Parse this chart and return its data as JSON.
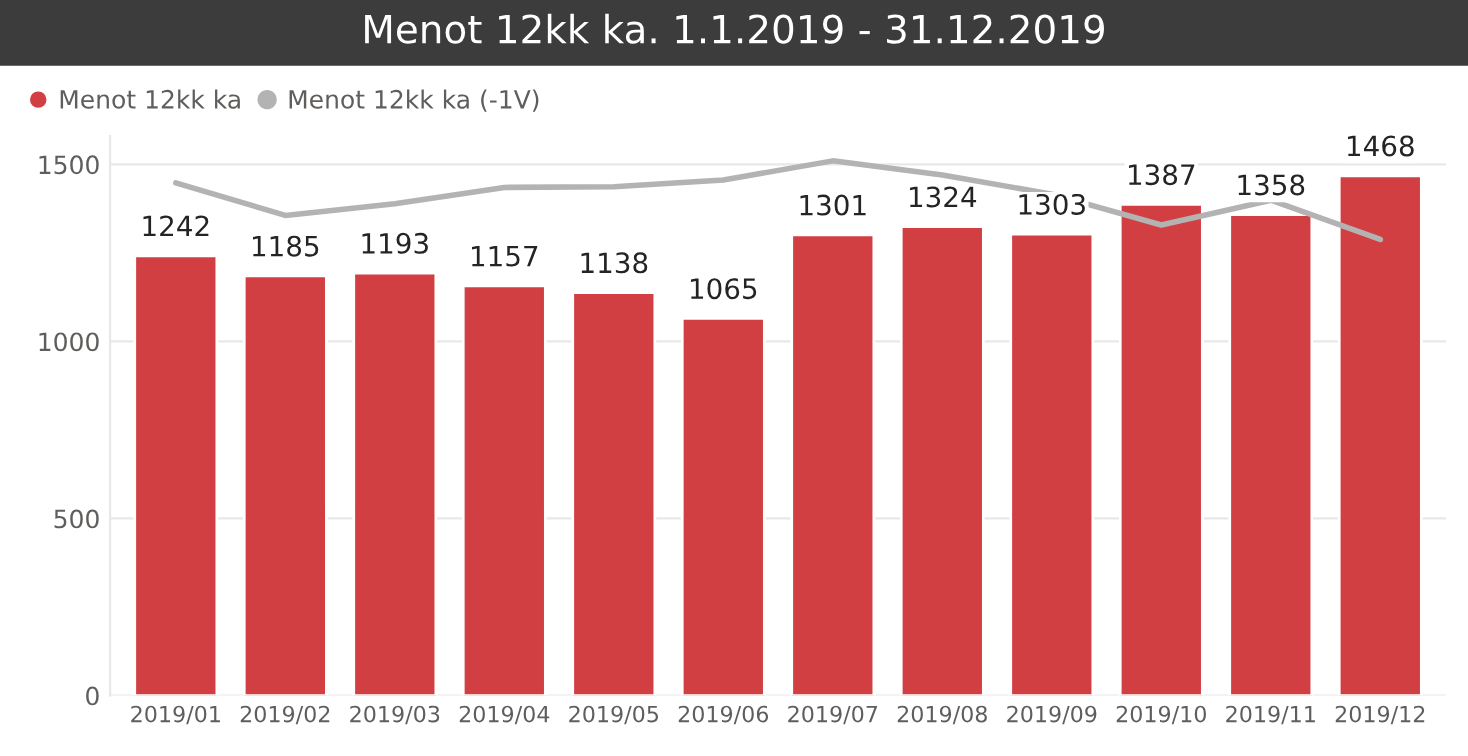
{
  "chart_data": {
    "type": "bar",
    "title": "Menot 12kk ka. 1.1.2019 - 31.12.2019",
    "categories": [
      "2019/01",
      "2019/02",
      "2019/03",
      "2019/04",
      "2019/05",
      "2019/06",
      "2019/07",
      "2019/08",
      "2019/09",
      "2019/10",
      "2019/11",
      "2019/12"
    ],
    "series": [
      {
        "name": "Menot 12kk ka",
        "color": "#d13f42",
        "values": [
          1242,
          1185,
          1193,
          1157,
          1138,
          1065,
          1301,
          1324,
          1303,
          1387,
          1358,
          1468
        ],
        "value_labels": [
          "1242",
          "1185",
          "1193",
          "1157",
          "1138",
          "1065",
          "1301",
          "1324",
          "1303",
          "1387",
          "1358",
          "1468"
        ]
      },
      {
        "name": "Menot 12kk ka (-1V)",
        "type": "line",
        "color": "#b3b3b3",
        "values": [
          1448,
          1356,
          1389,
          1435,
          1437,
          1456,
          1510,
          1470,
          1416,
          1329,
          1399,
          1288
        ]
      }
    ],
    "ylim": [
      0,
      1580
    ],
    "yticks": [
      0,
      500,
      1000,
      1500
    ],
    "grid": "y",
    "legend": "top left"
  }
}
